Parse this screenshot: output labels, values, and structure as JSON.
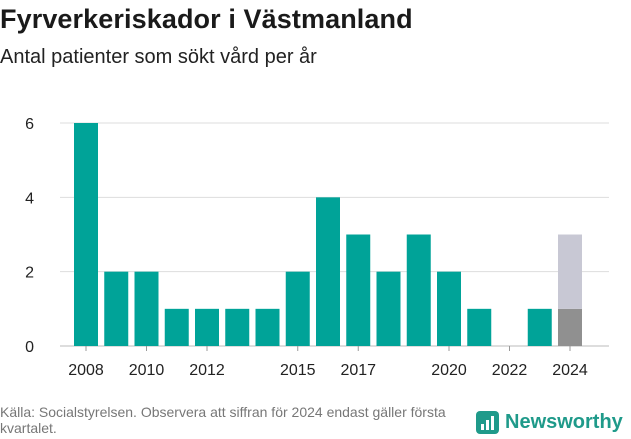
{
  "title": "Fyrverkeriskador i Västmanland",
  "subtitle": "Antal patienter som sökt vård per år",
  "source": "Källa: Socialstyrelsen. Observera att siffran för 2024 endast gäller första kvartalet.",
  "brand": "Newsworthy",
  "colors": {
    "bar": "#00a398",
    "partial_recorded": "#909090",
    "partial_projected": "#c8c8d4",
    "grid": "#dddddd",
    "text": "#1a1a1a"
  },
  "chart_data": {
    "type": "bar",
    "categories": [
      "2008",
      "2009",
      "2010",
      "2011",
      "2012",
      "2013",
      "2014",
      "2015",
      "2016",
      "2017",
      "2018",
      "2019",
      "2020",
      "2021",
      "2022",
      "2023",
      "2024"
    ],
    "values": [
      6,
      2,
      2,
      1,
      1,
      1,
      1,
      2,
      4,
      3,
      2,
      3,
      2,
      1,
      0,
      1,
      1
    ],
    "series": [
      {
        "values": [
          6,
          2,
          2,
          1,
          1,
          1,
          1,
          2,
          4,
          3,
          2,
          3,
          2,
          1,
          0,
          1,
          1
        ]
      },
      {
        "values": [
          0,
          0,
          0,
          0,
          0,
          0,
          0,
          0,
          0,
          0,
          0,
          0,
          0,
          0,
          0,
          0,
          2
        ]
      }
    ],
    "x_tick_labels": [
      "2008",
      "2010",
      "2012",
      "2015",
      "2017",
      "2020",
      "2022",
      "2024"
    ],
    "y_ticks": [
      0,
      2,
      4,
      6
    ],
    "ylim": [
      0,
      6
    ],
    "xlabel": "",
    "ylabel": "",
    "grid": true
  }
}
